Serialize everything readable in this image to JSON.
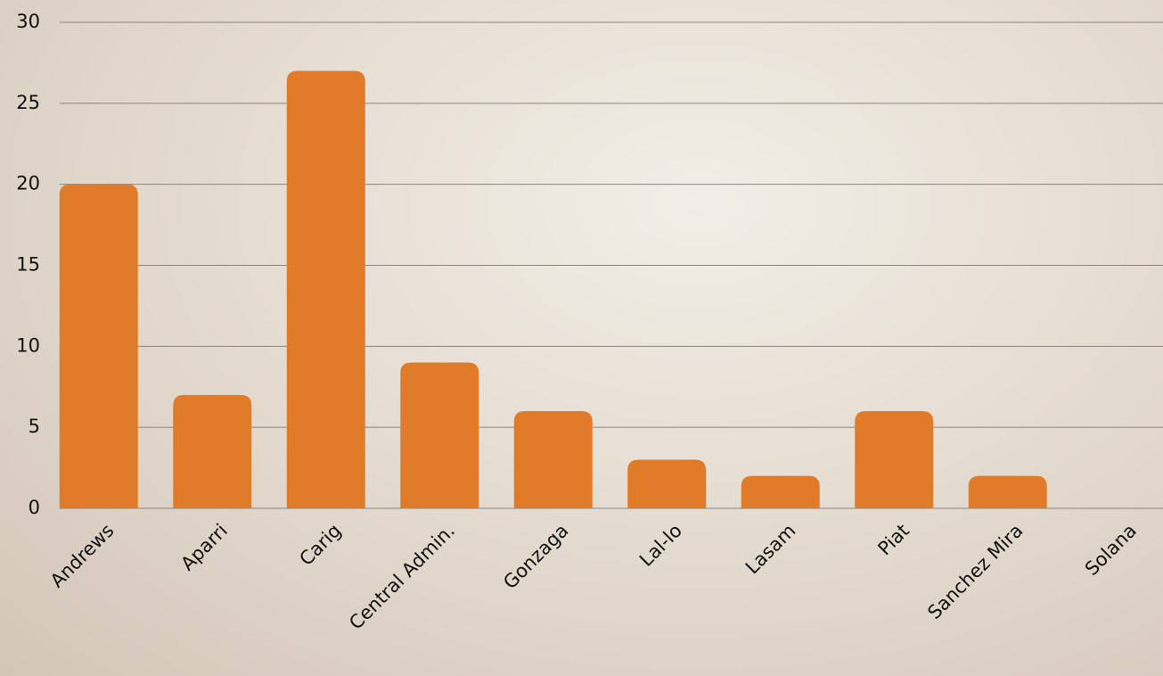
{
  "chart_data": {
    "type": "bar",
    "categories": [
      "Andrews",
      "Aparri",
      "Carig",
      "Central Admin.",
      "Gonzaga",
      "Lal-lo",
      "Lasam",
      "Piat",
      "Sanchez Mira",
      "Solana"
    ],
    "values": [
      20,
      7,
      27,
      9,
      6,
      3,
      2,
      6,
      2,
      0
    ],
    "color": "#e07b2a",
    "ylim": [
      0,
      30
    ],
    "yticks": [
      0,
      5,
      10,
      15,
      20,
      25,
      30
    ],
    "grid": true
  }
}
